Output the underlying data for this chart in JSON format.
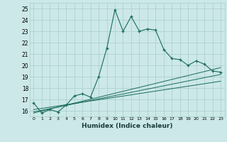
{
  "xlabel": "Humidex (Indice chaleur)",
  "bg_color": "#cce8e8",
  "grid_color": "#aacccc",
  "line_color": "#1a6b5a",
  "xlim": [
    -0.5,
    23.5
  ],
  "ylim": [
    15.5,
    25.5
  ],
  "yticks": [
    16,
    17,
    18,
    19,
    20,
    21,
    22,
    23,
    24,
    25
  ],
  "xticks": [
    0,
    1,
    2,
    3,
    4,
    5,
    6,
    7,
    8,
    9,
    10,
    11,
    12,
    13,
    14,
    15,
    16,
    17,
    18,
    19,
    20,
    21,
    22,
    23
  ],
  "main_x": [
    0,
    1,
    2,
    3,
    4,
    5,
    6,
    7,
    8,
    9,
    10,
    11,
    12,
    13,
    14,
    15,
    16,
    17,
    18,
    19,
    20,
    21,
    22,
    23
  ],
  "main_y": [
    16.7,
    15.8,
    16.1,
    15.9,
    16.5,
    17.3,
    17.5,
    17.2,
    19.0,
    21.5,
    24.9,
    23.0,
    24.3,
    23.0,
    23.2,
    23.1,
    21.4,
    20.6,
    20.5,
    20.0,
    20.4,
    20.1,
    19.5,
    19.4
  ],
  "line1_x": [
    0,
    23
  ],
  "line1_y": [
    16.1,
    18.6
  ],
  "line2_x": [
    0,
    23
  ],
  "line2_y": [
    15.8,
    19.8
  ],
  "line3_x": [
    0,
    23
  ],
  "line3_y": [
    15.9,
    19.2
  ]
}
